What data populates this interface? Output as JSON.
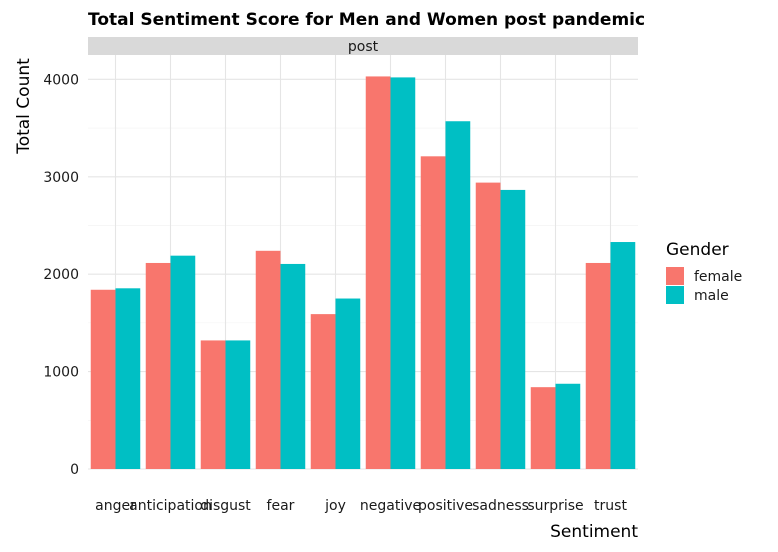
{
  "chart_data": {
    "type": "bar",
    "title": "Total Sentiment Score for Men and Women post pandemic",
    "facet_label": "post",
    "xlabel": "Sentiment",
    "ylabel": "Total Count",
    "categories": [
      "anger",
      "anticipation",
      "disgust",
      "fear",
      "joy",
      "negative",
      "positive",
      "sadness",
      "surprise",
      "trust"
    ],
    "series": [
      {
        "name": "female",
        "color": "#F8766D",
        "values": [
          1840,
          2115,
          1320,
          2240,
          1590,
          4030,
          3210,
          2940,
          840,
          2115
        ]
      },
      {
        "name": "male",
        "color": "#00BFC4",
        "values": [
          1855,
          2190,
          1320,
          2105,
          1750,
          4020,
          3570,
          2865,
          875,
          2330
        ]
      }
    ],
    "ylim": [
      0,
      4250
    ],
    "yticks": [
      0,
      1000,
      2000,
      3000,
      4000
    ],
    "grid": true,
    "legend": {
      "title": "Gender",
      "position": "right"
    }
  }
}
